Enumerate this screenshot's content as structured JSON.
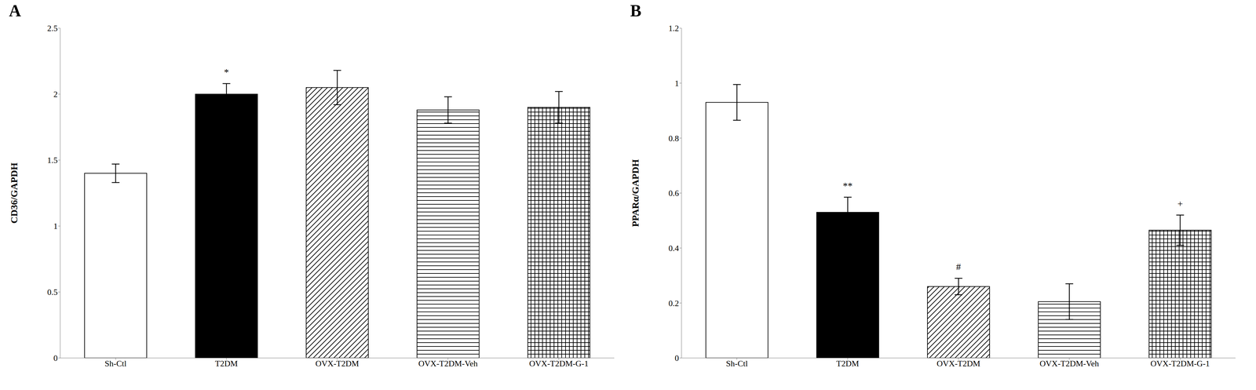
{
  "chart_data": [
    {
      "type": "bar",
      "title": "A",
      "ylabel": "CD36/GAPDH",
      "categories": [
        "Sh-Ctl",
        "T2DM",
        "OVX-T2DM",
        "OVX-T2DM-Veh",
        "OVX-T2DM-G-1"
      ],
      "values": [
        1.4,
        2.0,
        2.05,
        1.88,
        1.9
      ],
      "errors": [
        0.07,
        0.08,
        0.13,
        0.1,
        0.12
      ],
      "annotations": [
        null,
        "*",
        null,
        null,
        null
      ],
      "colors": [
        "white",
        "black",
        "white",
        "white",
        "white"
      ],
      "ylim": [
        0,
        2.5
      ],
      "yticks": [
        0,
        0.5,
        1,
        1.5,
        2,
        2.5
      ],
      "grid": false
    },
    {
      "type": "bar",
      "title": "B",
      "ylabel": "PPARα/GAPDH",
      "categories": [
        "Sh-Ctl",
        "T2DM",
        "OVX-T2DM",
        "OVX-T2DM-Veh",
        "OVX-T2DM-G-1"
      ],
      "values": [
        0.93,
        0.53,
        0.26,
        0.205,
        0.465
      ],
      "errors": [
        0.065,
        0.055,
        0.03,
        0.065,
        0.055
      ],
      "annotations": [
        null,
        "**",
        "#",
        null,
        "+"
      ],
      "colors": [
        "white",
        "black",
        "white",
        "white",
        "white"
      ],
      "ylim": [
        0,
        1.2
      ],
      "yticks": [
        0,
        0.2,
        0.4,
        0.6,
        0.8,
        1,
        1.2
      ],
      "grid": false
    }
  ]
}
